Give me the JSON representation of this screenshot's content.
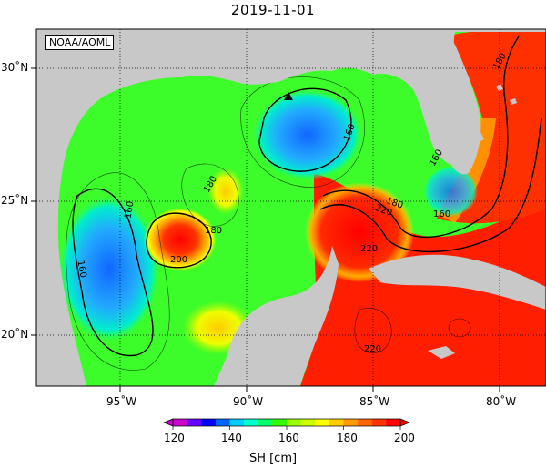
{
  "title": "2019-11-01",
  "credit": "NOAA/AOML",
  "lon_ticks": [
    "95˚W",
    "90˚W",
    "85˚W",
    "80˚W"
  ],
  "lat_ticks": [
    "30˚N",
    "25˚N",
    "20˚N"
  ],
  "contour_labels": [
    "160",
    "160",
    "160",
    "160",
    "160",
    "180",
    "180",
    "180",
    "180",
    "200",
    "220",
    "220",
    "220"
  ],
  "colorbar": {
    "ticks": [
      "120",
      "140",
      "160",
      "180",
      "200"
    ],
    "unit": "SH [cm]",
    "colors": [
      "#cc00cc",
      "#6600ff",
      "#0000ff",
      "#0066ff",
      "#00ccff",
      "#00ffcc",
      "#00ff66",
      "#33ff00",
      "#99ff00",
      "#ccff00",
      "#ffff00",
      "#ffcc00",
      "#ff9900",
      "#ff6600",
      "#ff3300",
      "#ff0000"
    ]
  },
  "map_colors": {
    "land": "#c8c8c8",
    "ocean_base": "#44ff22",
    "warm": "#ff2200",
    "cool": "#22aaff"
  },
  "marker": "triangle"
}
